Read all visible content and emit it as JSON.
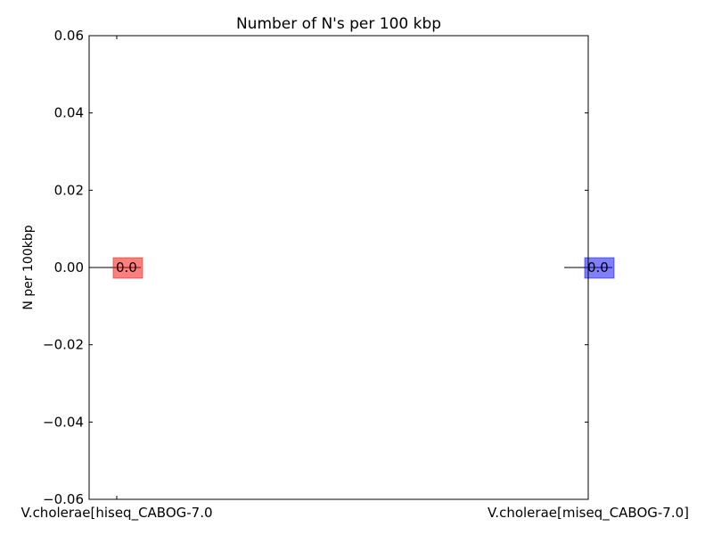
{
  "chart_data": {
    "type": "bar",
    "title": "Number of N's per 100 kbp",
    "xlabel": "",
    "ylabel": "N per 100kbp",
    "ylim": [
      -0.06,
      0.06
    ],
    "yticks": [
      0.06,
      0.04,
      0.02,
      0.0,
      -0.02,
      -0.04,
      -0.06
    ],
    "ytick_labels": [
      "0.06",
      "0.04",
      "0.02",
      "0.00",
      "−0.02",
      "−0.04",
      "−0.06"
    ],
    "categories": [
      "V.cholerae[hiseq_CABOG-7.0",
      "V.cholerae[miseq_CABOG-7.0]"
    ],
    "values": [
      0.0,
      0.0
    ],
    "data_labels": [
      "0.0",
      "0.0"
    ],
    "bar_colors": [
      "#ff0000",
      "#0000ff"
    ],
    "grid": false,
    "legend": "none"
  }
}
